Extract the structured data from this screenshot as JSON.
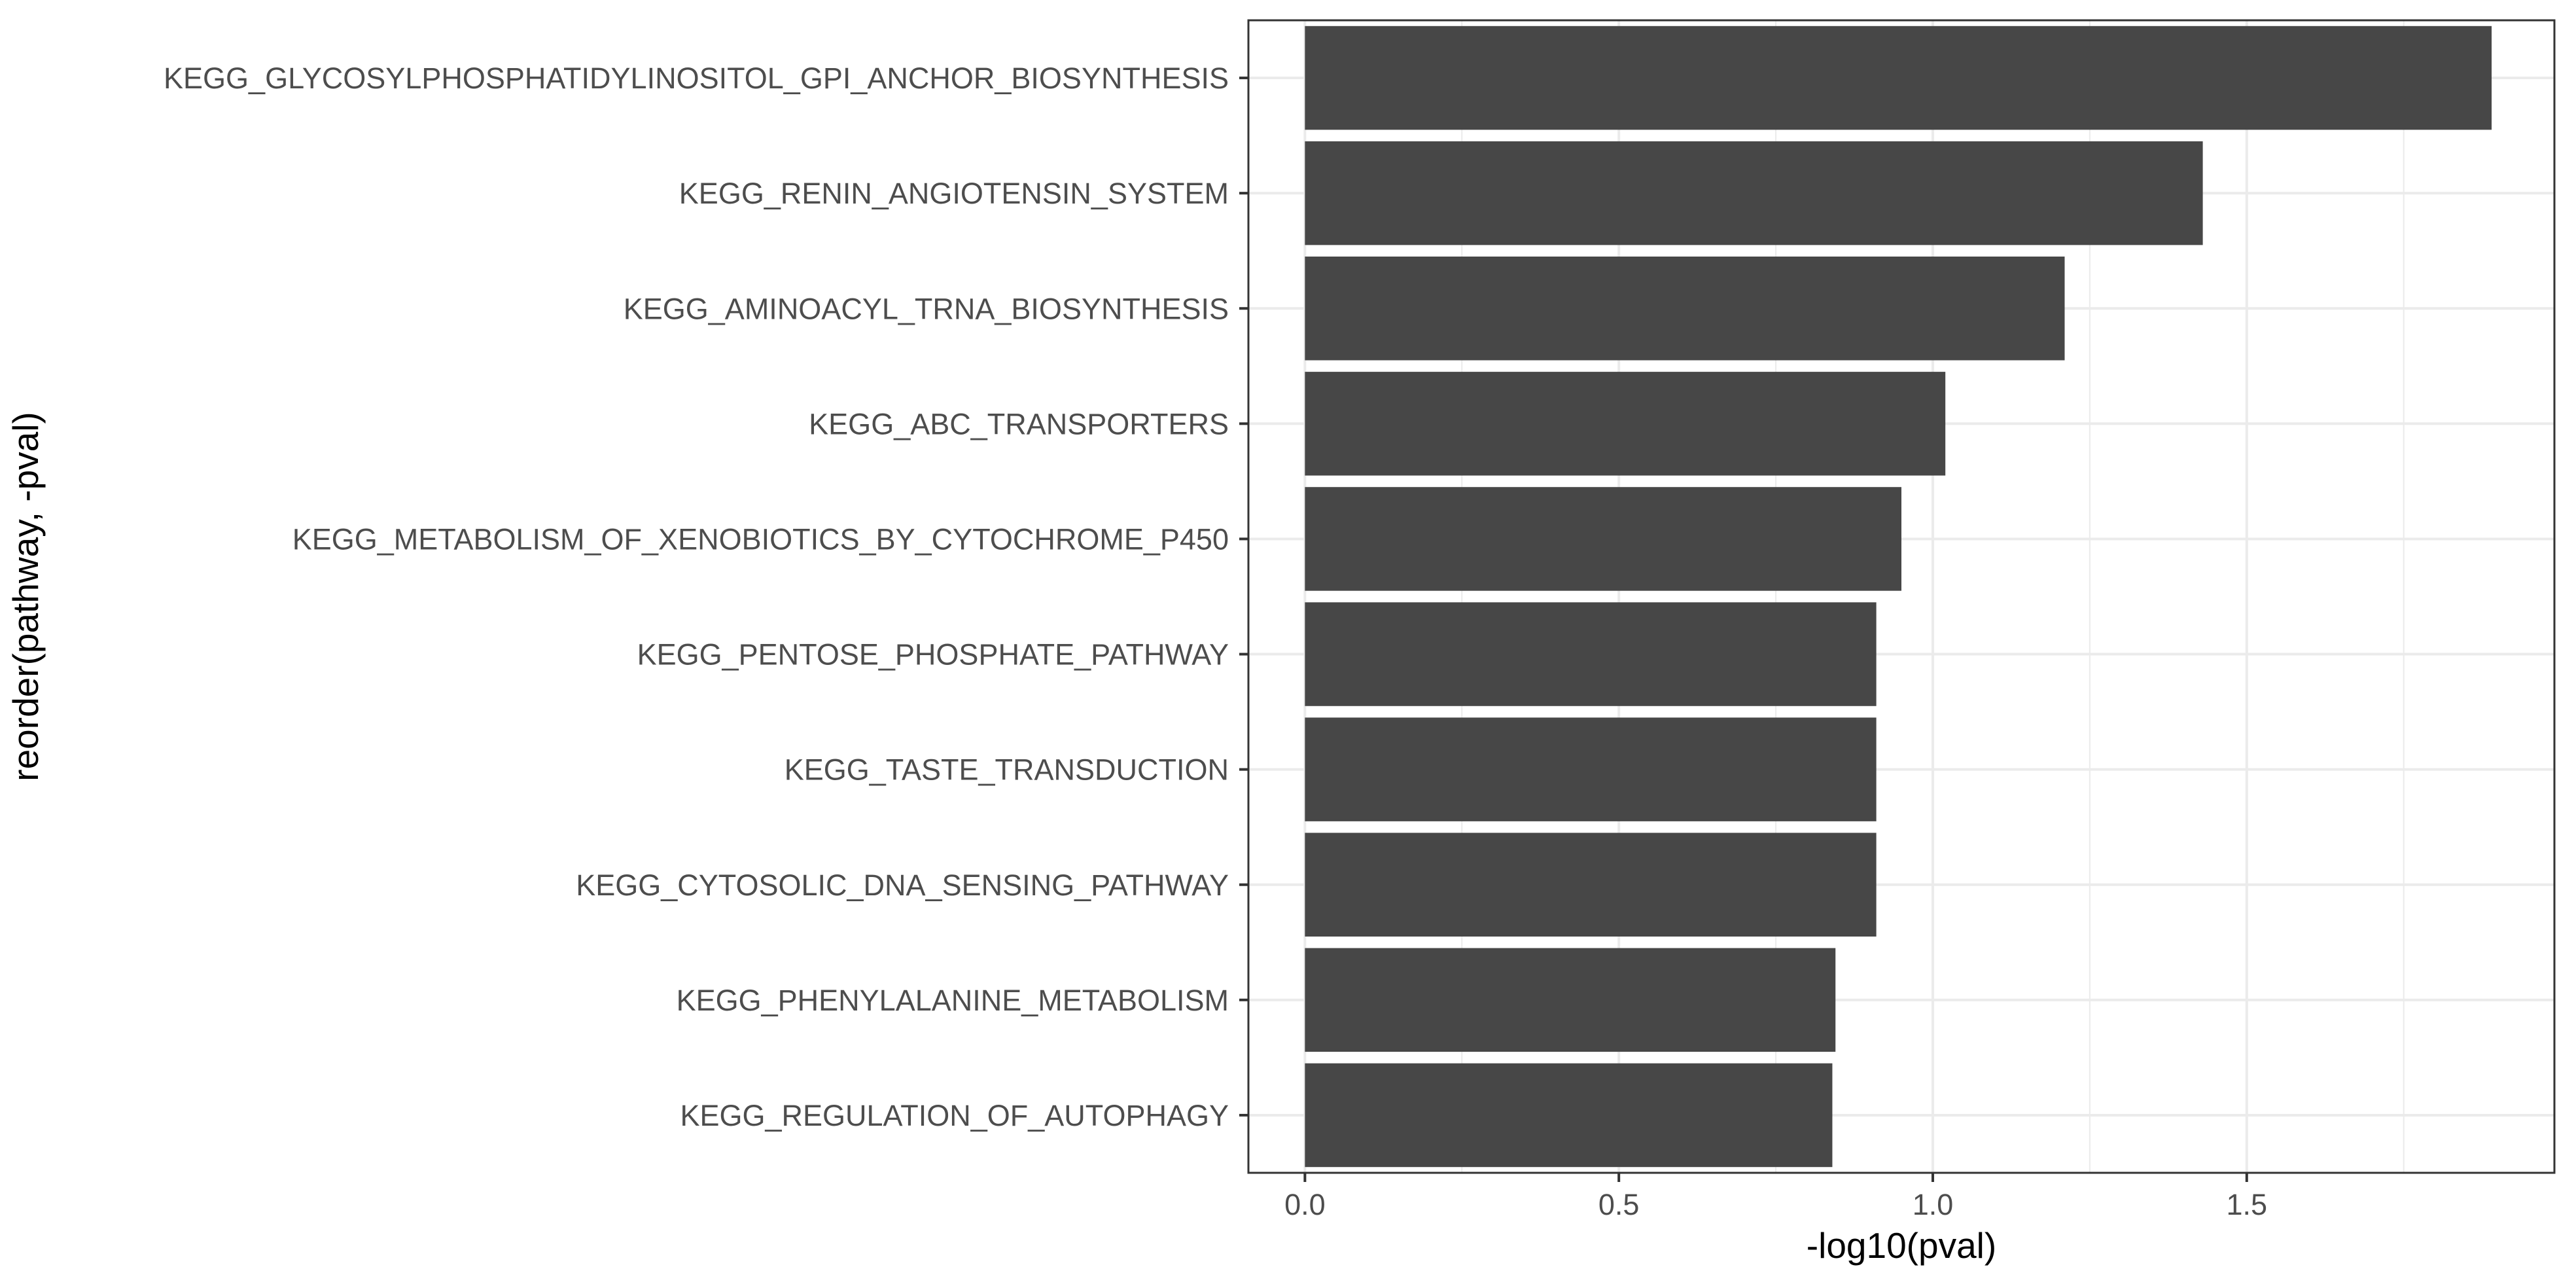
{
  "chart_data": {
    "type": "bar",
    "orientation": "horizontal",
    "categories": [
      "KEGG_GLYCOSYLPHOSPHATIDYLINOSITOL_GPI_ANCHOR_BIOSYNTHESIS",
      "KEGG_RENIN_ANGIOTENSIN_SYSTEM",
      "KEGG_AMINOACYL_TRNA_BIOSYNTHESIS",
      "KEGG_ABC_TRANSPORTERS",
      "KEGG_METABOLISM_OF_XENOBIOTICS_BY_CYTOCHROME_P450",
      "KEGG_PENTOSE_PHOSPHATE_PATHWAY",
      "KEGG_TASTE_TRANSDUCTION",
      "KEGG_CYTOSOLIC_DNA_SENSING_PATHWAY",
      "KEGG_PHENYLALANINE_METABOLISM",
      "KEGG_REGULATION_OF_AUTOPHAGY"
    ],
    "values": [
      1.89,
      1.43,
      1.21,
      1.02,
      0.95,
      0.91,
      0.91,
      0.91,
      0.845,
      0.84
    ],
    "xlabel": "-log10(pval)",
    "ylabel": "reorder(pathway, -pval)",
    "xlim": [
      -0.09,
      1.99
    ],
    "xticks": [
      0.0,
      0.5,
      1.0,
      1.5
    ],
    "xtick_labels": [
      "0.0",
      "0.5",
      "1.0",
      "1.5"
    ],
    "grid": true,
    "theme": "bw",
    "bar_color": "#474747",
    "grid_color": "#ebebeb",
    "panel_border_color": "#333333"
  }
}
